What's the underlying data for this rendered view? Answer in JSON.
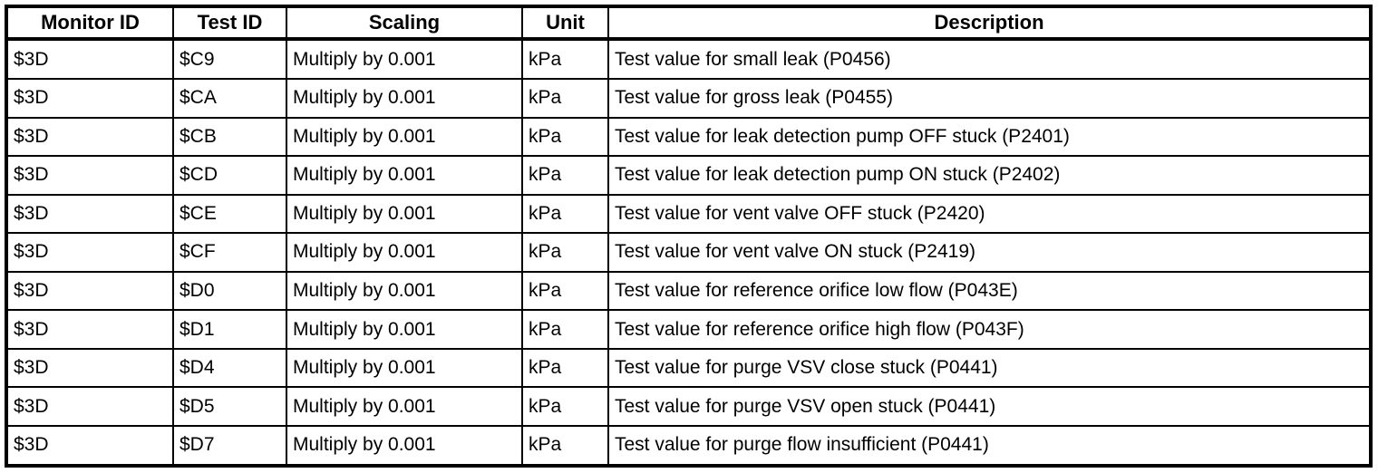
{
  "table": {
    "columns": [
      {
        "key": "monitor_id",
        "label": "Monitor ID"
      },
      {
        "key": "test_id",
        "label": "Test ID"
      },
      {
        "key": "scaling",
        "label": "Scaling"
      },
      {
        "key": "unit",
        "label": "Unit"
      },
      {
        "key": "description",
        "label": "Description"
      }
    ],
    "rows": [
      [
        "$3D",
        "$C9",
        "Multiply by 0.001",
        "kPa",
        "Test value for small leak (P0456)"
      ],
      [
        "$3D",
        "$CA",
        "Multiply by 0.001",
        "kPa",
        "Test value for gross leak (P0455)"
      ],
      [
        "$3D",
        "$CB",
        "Multiply by 0.001",
        "kPa",
        "Test value for leak detection pump OFF stuck (P2401)"
      ],
      [
        "$3D",
        "$CD",
        "Multiply by 0.001",
        "kPa",
        "Test value for leak detection pump ON stuck (P2402)"
      ],
      [
        "$3D",
        "$CE",
        "Multiply by 0.001",
        "kPa",
        "Test value for vent valve OFF stuck (P2420)"
      ],
      [
        "$3D",
        "$CF",
        "Multiply by 0.001",
        "kPa",
        "Test value for vent valve ON stuck (P2419)"
      ],
      [
        "$3D",
        "$D0",
        "Multiply by 0.001",
        "kPa",
        "Test value for reference orifice low flow (P043E)"
      ],
      [
        "$3D",
        "$D1",
        "Multiply by 0.001",
        "kPa",
        "Test value for reference orifice high flow (P043F)"
      ],
      [
        "$3D",
        "$D4",
        "Multiply by 0.001",
        "kPa",
        "Test value for purge VSV close stuck (P0441)"
      ],
      [
        "$3D",
        "$D5",
        "Multiply by 0.001",
        "kPa",
        "Test value for purge VSV open stuck (P0441)"
      ],
      [
        "$3D",
        "$D7",
        "Multiply by 0.001",
        "kPa",
        "Test value for purge flow insufficient (P0441)"
      ]
    ]
  },
  "colors": {
    "border": "#000000",
    "background": "#ffffff",
    "text": "#000000"
  }
}
